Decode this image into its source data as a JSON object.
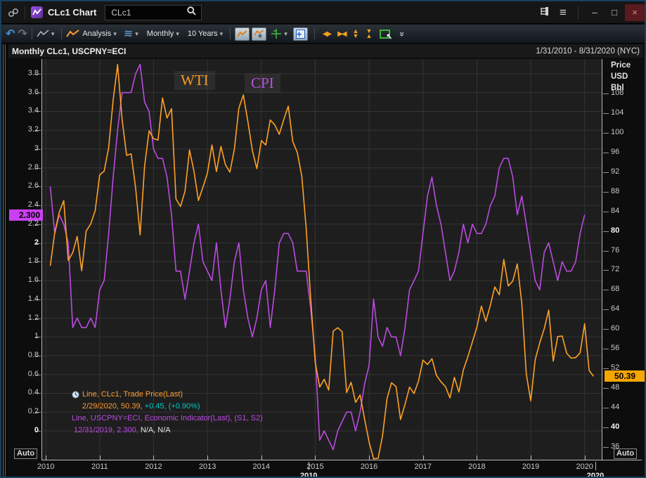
{
  "window": {
    "title": "CLc1 Chart",
    "search_value": "CLc1"
  },
  "titlebar_icons": {
    "hamburger": "≡",
    "minimize": "–",
    "maximize": "□",
    "close": "×"
  },
  "toolbar": {
    "analysis_label": "Analysis",
    "period_label": "Monthly",
    "range_label": "10 Years",
    "icons": {
      "undo": "↶",
      "redo": "↷",
      "waves": "≋",
      "caret": "▾",
      "plus": "+",
      "left_right": "◀▶",
      "converge": "▶◀",
      "tri_up": "▲",
      "tri_down": "▼",
      "chevrons": "»",
      "cursor": "↖"
    }
  },
  "chart_header": {
    "title": "Monthly CLc1, USCPNY=ECI",
    "date_range": "1/31/2010 - 8/31/2020 (NYC)"
  },
  "annotations": {
    "wti": "WTI",
    "cpi": "CPI"
  },
  "axis_buttons": {
    "left_auto": "Auto",
    "right_auto": "Auto"
  },
  "price_labels": {
    "left": {
      "text": "2.300",
      "value": 2.3,
      "bg": "#cb3ff2"
    },
    "right": {
      "text": "50.39",
      "value": 50.39,
      "bg": "#f7a600"
    }
  },
  "legend": {
    "line1": "Line, CLc1, Trade Price(Last)",
    "line2_orange": "2/29/2020, 50.39, ",
    "line2_cyan": "+0.45, (+0.90%)",
    "line3": "Line, USCPNY=ECI, Economic Indicator(Last), (S1, S2)",
    "line4_purple": "12/31/2019, 2.300, ",
    "line4_white": "N/A, N/A"
  },
  "chart_data": {
    "type": "line",
    "title": "Monthly CLc1, USCPNY=ECI",
    "period": "Monthly",
    "date_range": "1/31/2010 - 8/31/2020 (NYC)",
    "grid": true,
    "x_range": [
      2009.92,
      2020.33
    ],
    "x_axis": {
      "year_ticks": [
        2010,
        2011,
        2012,
        2013,
        2014,
        2015,
        2016,
        2017,
        2018,
        2019,
        2020
      ],
      "decade_labels": [
        {
          "label": "2010",
          "t": 2014.88
        },
        {
          "label": "2020",
          "t": 2020.2
        }
      ]
    },
    "left_axis": {
      "range": [
        -0.307,
        3.957
      ],
      "ticks": [
        3.8,
        3.6,
        3.4,
        3.2,
        3,
        2.8,
        2.6,
        2.4,
        2.2,
        2,
        1.8,
        1.6,
        1.4,
        1.2,
        1,
        0.8,
        0.6,
        0.4,
        0.2,
        0
      ],
      "bold_ticks": [
        2,
        0
      ],
      "last_value": 2.3,
      "last_value_date": "12/31/2019"
    },
    "right_axis": {
      "title_lines": [
        "Price",
        "USD",
        "Bbl"
      ],
      "range": [
        33.42,
        115.01
      ],
      "ticks": [
        108,
        104,
        100,
        96,
        92,
        88,
        84,
        80,
        76,
        72,
        68,
        64,
        60,
        56,
        52,
        48,
        44,
        40,
        36
      ],
      "bold_ticks": [
        80,
        40
      ],
      "last_value": 50.39,
      "last_value_date": "2/29/2020",
      "change": "+0.45",
      "change_pct": "+0.90%"
    },
    "series": [
      {
        "name": "WTI",
        "legend": "Line, CLc1, Trade Price(Last)",
        "axis": "right",
        "color": "#ffa226",
        "start_year": 2010,
        "frequency": "monthly",
        "values": [
          72.9,
          79.7,
          83.8,
          86.2,
          74.0,
          75.6,
          78.9,
          71.9,
          80.0,
          81.4,
          84.1,
          91.4,
          92.2,
          97.0,
          106.7,
          113.9,
          102.7,
          95.4,
          95.7,
          88.8,
          79.2,
          93.2,
          100.4,
          98.8,
          98.5,
          107.1,
          103.0,
          104.9,
          86.5,
          85.0,
          88.1,
          96.5,
          92.2,
          86.2,
          88.9,
          91.8,
          97.5,
          92.1,
          97.2,
          93.5,
          92.0,
          96.6,
          105.0,
          107.7,
          102.3,
          96.4,
          92.7,
          98.4,
          97.5,
          102.6,
          101.6,
          99.7,
          102.7,
          105.4,
          98.2,
          96.0,
          91.2,
          80.5,
          66.2,
          53.3,
          48.2,
          49.8,
          47.6,
          59.6,
          60.3,
          59.5,
          47.1,
          49.2,
          45.1,
          46.6,
          41.7,
          37.0,
          33.6,
          33.7,
          38.3,
          45.9,
          49.1,
          48.3,
          41.6,
          44.7,
          48.2,
          46.9,
          49.4,
          53.7,
          52.8,
          54.0,
          50.6,
          49.3,
          48.3,
          46.0,
          50.2,
          47.2,
          51.7,
          54.4,
          57.4,
          60.4,
          64.7,
          61.6,
          64.9,
          68.6,
          67.0,
          74.2,
          68.8,
          69.8,
          73.3,
          65.3,
          50.9,
          45.4,
          53.8,
          57.2,
          60.1,
          63.9,
          53.5,
          58.5,
          58.6,
          55.1,
          54.1,
          54.2,
          55.2,
          61.1,
          51.6,
          50.39
        ]
      },
      {
        "name": "CPI",
        "legend": "Line, USCPNY=ECI, Economic Indicator(Last), (S1, S2)",
        "axis": "left",
        "color": "#bb4be0",
        "start_year": 2010,
        "frequency": "monthly",
        "values": [
          2.6,
          2.1,
          2.3,
          2.2,
          2.0,
          1.1,
          1.2,
          1.1,
          1.1,
          1.2,
          1.1,
          1.5,
          1.6,
          2.1,
          2.7,
          3.2,
          3.6,
          3.6,
          3.6,
          3.8,
          3.9,
          3.5,
          3.4,
          3.0,
          2.9,
          2.9,
          2.7,
          2.3,
          1.7,
          1.7,
          1.4,
          1.7,
          2.0,
          2.2,
          1.8,
          1.7,
          1.6,
          2.0,
          1.5,
          1.1,
          1.4,
          1.8,
          2.0,
          1.5,
          1.2,
          1.0,
          1.2,
          1.5,
          1.6,
          1.1,
          1.5,
          2.0,
          2.1,
          2.1,
          2.0,
          1.7,
          1.7,
          1.7,
          1.3,
          0.8,
          -0.1,
          0.0,
          -0.1,
          -0.2,
          0.0,
          0.1,
          0.2,
          0.2,
          0.0,
          0.2,
          0.5,
          0.7,
          1.4,
          1.0,
          0.9,
          1.1,
          1.0,
          1.0,
          0.8,
          1.1,
          1.5,
          1.6,
          1.7,
          2.1,
          2.5,
          2.7,
          2.4,
          2.2,
          1.9,
          1.6,
          1.7,
          1.9,
          2.2,
          2.0,
          2.2,
          2.1,
          2.1,
          2.2,
          2.4,
          2.5,
          2.8,
          2.9,
          2.9,
          2.7,
          2.3,
          2.5,
          2.2,
          1.9,
          1.6,
          1.5,
          1.9,
          2.0,
          1.8,
          1.6,
          1.8,
          1.7,
          1.7,
          1.8,
          2.1,
          2.3
        ]
      }
    ]
  }
}
